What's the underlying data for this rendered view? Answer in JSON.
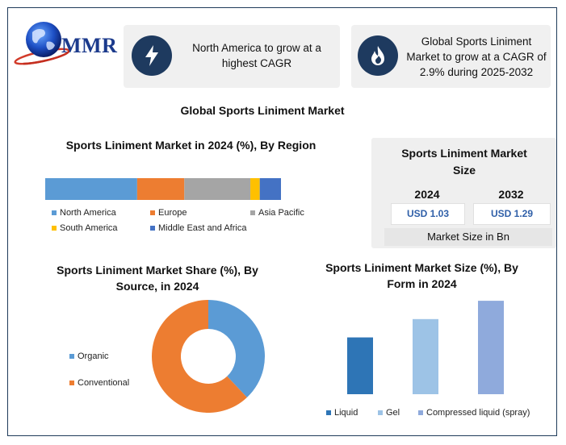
{
  "logo": {
    "text": "MMR"
  },
  "highlights": [
    {
      "icon": "lightning-icon",
      "text": "North America to grow at a highest CAGR"
    },
    {
      "icon": "flame-icon",
      "text": "Global Sports Liniment Market to grow at a CAGR of 2.9% during 2025-2032"
    }
  ],
  "main_title": "Global Sports Liniment Market",
  "market_size": {
    "title": "Sports Liniment Market Size",
    "years": [
      "2024",
      "2032"
    ],
    "values": [
      "USD 1.03",
      "USD 1.29"
    ],
    "unit_label": "Market Size in Bn"
  },
  "colors": {
    "blue": "#5b9bd5",
    "orange": "#ed7d31",
    "gray": "#a5a5a5",
    "yellow": "#ffc000",
    "dark_blue": "#4472c4",
    "navy": "#1e3a5f",
    "bar_dark": "#2e75b6",
    "bar_light": "#9dc3e6",
    "bar_mid": "#8faadc"
  },
  "chart_data": [
    {
      "type": "bar",
      "orientation": "horizontal-stacked",
      "title": "Sports Liniment Market in 2024 (%), By Region",
      "categories": [
        "2024"
      ],
      "series": [
        {
          "name": "North America",
          "values": [
            39
          ]
        },
        {
          "name": "Europe",
          "values": [
            20
          ]
        },
        {
          "name": "Asia Pacific",
          "values": [
            28
          ]
        },
        {
          "name": "South America",
          "values": [
            4
          ]
        },
        {
          "name": "Middle East and Africa",
          "values": [
            9
          ]
        }
      ],
      "xlim": [
        0,
        100
      ],
      "grid": false,
      "legend_position": "bottom"
    },
    {
      "type": "pie",
      "subtype": "donut",
      "title": "Sports Liniment Market Share (%), By Source, in 2024",
      "labels": [
        "Organic",
        "Conventional"
      ],
      "values": [
        38,
        62
      ],
      "legend_position": "left"
    },
    {
      "type": "bar",
      "title": "Sports Liniment Market Size (%), By Form in 2024",
      "categories": [
        "Liquid",
        "Gel",
        "Compressed liquid (spray)"
      ],
      "values": [
        31,
        41,
        51
      ],
      "ylim": [
        0,
        55
      ],
      "grid": false,
      "legend_position": "bottom"
    }
  ]
}
